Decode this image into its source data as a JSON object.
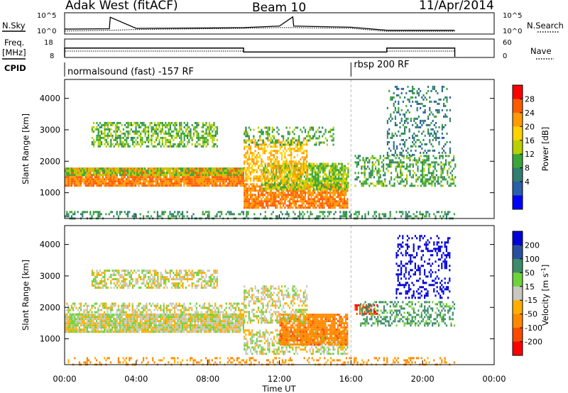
{
  "header": {
    "title": "Adak West (fitACF)",
    "beam": "Beam 10",
    "date": "11/Apr/2014"
  },
  "chart_data": [
    {
      "type": "line",
      "name_label": "N.Sky",
      "right_label": "N.Search",
      "ytick_labels": [
        "10^5",
        "10^0"
      ],
      "right_ytick_labels": [
        "10^5",
        "10^0"
      ],
      "note": "",
      "x_hours": [
        0,
        2.5,
        2.55,
        4,
        8,
        10,
        12,
        12.75,
        12.8,
        16,
        18,
        18.05,
        21.8
      ],
      "noise_sky_log": [
        1.1,
        1.2,
        4.2,
        1.3,
        1.4,
        1.5,
        1.9,
        4.3,
        1.9,
        1.6,
        0.8,
        0.8,
        0.8
      ],
      "search_log": [
        0.6,
        0.8,
        0.8,
        1.0,
        1.2,
        1.3,
        1.5,
        1.5,
        1.5,
        1.3,
        0.5,
        0.5,
        0.5
      ],
      "ylim_log": [
        0,
        5
      ]
    },
    {
      "type": "line",
      "name_label": "Freq.",
      "unit_label": "[MHz]",
      "right_label": "Nave",
      "ytick_labels": [
        "18",
        "8"
      ],
      "right_ytick_labels": [
        "60",
        "0"
      ],
      "ylim": [
        8,
        18
      ],
      "right_ylim": [
        0,
        60
      ],
      "freq_segments": [
        {
          "x0": 0,
          "x1": 10,
          "value": 13.1
        },
        {
          "x0": 10,
          "x1": 18,
          "value": 10.8
        },
        {
          "x0": 18,
          "x1": 21.8,
          "value": 13.1
        }
      ],
      "nave_segments": [
        {
          "x0": 0,
          "x1": 10,
          "value": 20
        },
        {
          "x0": 10,
          "x1": 18,
          "value": 17
        },
        {
          "x0": 18,
          "x1": 21.8,
          "value": 20
        }
      ]
    },
    {
      "type": "table",
      "label": "CPID",
      "segments": [
        {
          "x0": 0,
          "x1": 16,
          "name": "normalsound (fast) -157 RF"
        },
        {
          "x0": 16,
          "x1": 21.8,
          "name": "rbsp 200 RF"
        }
      ]
    },
    {
      "type": "heatmap",
      "quantity": "power",
      "ylabel": "Slant Range [km]",
      "xlim": [
        0,
        24
      ],
      "ylim": [
        180,
        4600
      ],
      "ytick_values": [
        1000,
        2000,
        3000,
        4000
      ],
      "colorbar_label": "Power [dB]",
      "colorbar_ticks": [
        "28",
        "24",
        "20",
        "16",
        "12",
        "8",
        "4"
      ],
      "colorbar_colors": [
        "#ff0000",
        "#ff5a00",
        "#ff9a00",
        "#ffd200",
        "#b8d000",
        "#3aa63a",
        "#317e72",
        "#2a5ea8",
        "#0000ff"
      ],
      "scatter_bands": [
        {
          "x0": 0.0,
          "x1": 10.0,
          "y0": 1250,
          "y1": 1800,
          "power": 26,
          "fill": 0.92
        },
        {
          "x0": 0.0,
          "x1": 10.0,
          "y0": 1550,
          "y1": 1800,
          "power": 14,
          "fill": 0.7
        },
        {
          "x0": 1.5,
          "x1": 8.5,
          "y0": 2500,
          "y1": 3250,
          "power": 13,
          "fill": 0.55
        },
        {
          "x0": 10.0,
          "x1": 15.8,
          "y0": 550,
          "y1": 1300,
          "power": 26,
          "fill": 0.8
        },
        {
          "x0": 11.0,
          "x1": 15.8,
          "y0": 1100,
          "y1": 1950,
          "power": 15,
          "fill": 0.75
        },
        {
          "x0": 10.0,
          "x1": 13.5,
          "y0": 1400,
          "y1": 2700,
          "power": 22,
          "fill": 0.55
        },
        {
          "x0": 10.0,
          "x1": 15.0,
          "y0": 2500,
          "y1": 3100,
          "power": 12,
          "fill": 0.3
        },
        {
          "x0": 16.2,
          "x1": 21.8,
          "y0": 1200,
          "y1": 2200,
          "power": 12,
          "fill": 0.45
        },
        {
          "x0": 18.0,
          "x1": 21.5,
          "y0": 2200,
          "y1": 4400,
          "power": 8,
          "fill": 0.25
        },
        {
          "x0": 0.0,
          "x1": 21.8,
          "y0": 200,
          "y1": 420,
          "power": 10,
          "fill": 0.35
        }
      ],
      "boundary_line_x": 16
    },
    {
      "type": "heatmap",
      "quantity": "velocity",
      "ylabel": "Slant Range [km]",
      "xlabel": "Time UT",
      "xlim": [
        0,
        24
      ],
      "ylim": [
        180,
        4600
      ],
      "ytick_values": [
        1000,
        2000,
        3000,
        4000
      ],
      "xtick_labels": [
        "00:00",
        "04:00",
        "08:00",
        "12:00",
        "16:00",
        "20:00",
        "00:00"
      ],
      "xtick_values": [
        0,
        4,
        8,
        12,
        16,
        20,
        24
      ],
      "colorbar_label": "Velocity [m s",
      "colorbar_label_sup": "-1",
      "colorbar_label_end": "]",
      "colorbar_ticks": [
        "200",
        "100",
        "50",
        "15",
        "-15",
        "-50",
        "-100",
        "-200"
      ],
      "colorbar_colors": [
        "#0000d8",
        "#2a4fa0",
        "#3c8c6a",
        "#6fd23a",
        "#c8c8c0",
        "#ffae00",
        "#ff8800",
        "#ff4a00",
        "#ff0000"
      ],
      "scatter_bands": [
        {
          "x0": 0.0,
          "x1": 10.0,
          "y0": 1250,
          "y1": 1800,
          "velocity": 0,
          "fill": 0.95
        },
        {
          "x0": 0.0,
          "x1": 10.0,
          "y0": 1800,
          "y1": 2150,
          "velocity": 0,
          "fill": 0.45
        },
        {
          "x0": 1.5,
          "x1": 8.5,
          "y0": 2600,
          "y1": 3200,
          "velocity": 0,
          "fill": 0.55
        },
        {
          "x0": 10.0,
          "x1": 15.8,
          "y0": 550,
          "y1": 1300,
          "velocity": 0,
          "fill": 0.55
        },
        {
          "x0": 12.0,
          "x1": 15.8,
          "y0": 800,
          "y1": 1800,
          "velocity": -60,
          "fill": 0.85
        },
        {
          "x0": 10.0,
          "x1": 13.5,
          "y0": 1500,
          "y1": 2700,
          "velocity": 0,
          "fill": 0.45
        },
        {
          "x0": 16.2,
          "x1": 17.5,
          "y0": 1800,
          "y1": 2100,
          "velocity": -150,
          "fill": 0.6
        },
        {
          "x0": 16.5,
          "x1": 21.8,
          "y0": 1400,
          "y1": 2200,
          "velocity": 40,
          "fill": 0.4
        },
        {
          "x0": 18.5,
          "x1": 21.5,
          "y0": 2300,
          "y1": 4300,
          "velocity": 180,
          "fill": 0.3
        },
        {
          "x0": 0.0,
          "x1": 21.8,
          "y0": 200,
          "y1": 420,
          "velocity": -40,
          "fill": 0.25
        }
      ],
      "boundary_line_x": 16
    }
  ]
}
